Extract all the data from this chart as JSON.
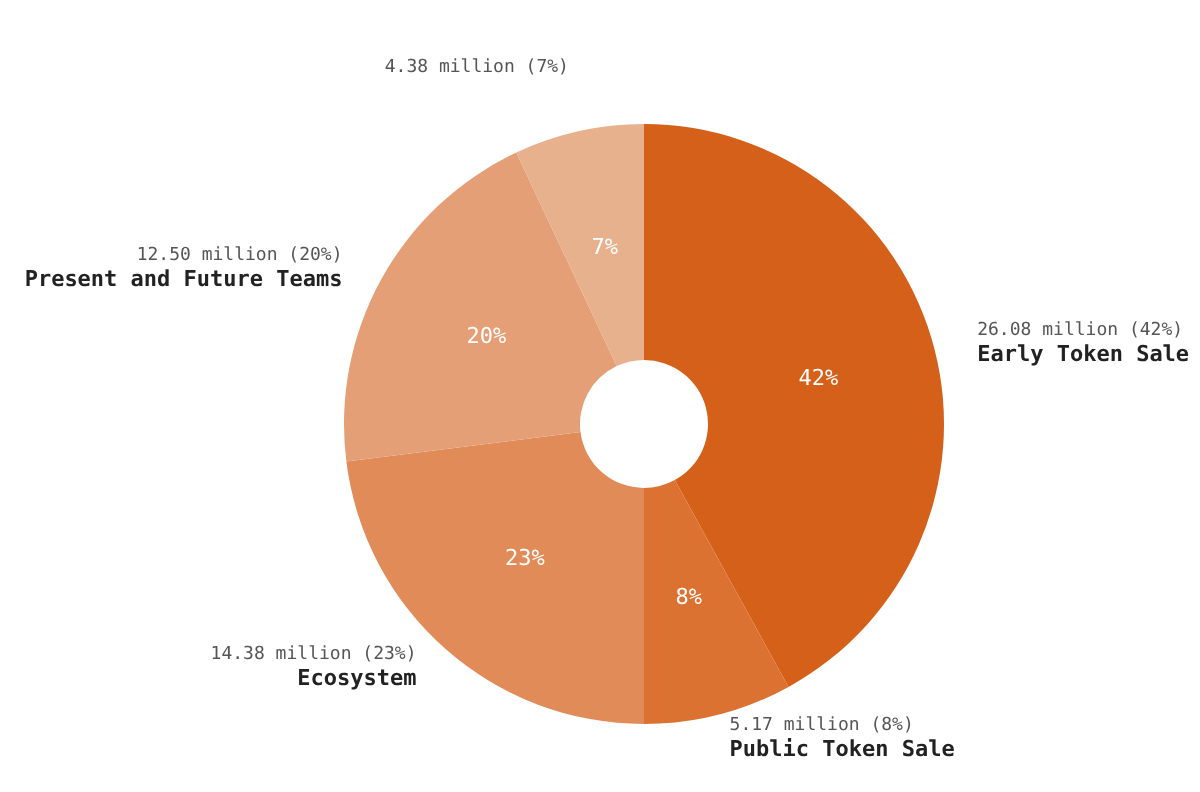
{
  "chart_data": {
    "type": "donut",
    "categories": [
      "Early Token Sale",
      "Public Token Sale",
      "Ecosystem",
      "Present and Future Teams",
      null
    ],
    "values": [
      42,
      8,
      23,
      20,
      7
    ],
    "colors": [
      "#d4601a",
      "#dc7232",
      "#e08b58",
      "#e49f77",
      "#e8b18e"
    ],
    "value_labels": [
      "42%",
      "8%",
      "23%",
      "20%",
      "7%"
    ],
    "annotations": [
      "26.08 million (42%)",
      "5.17 million (8%)",
      "14.38 million (23%)",
      "12.50 million (20%)",
      "4.38 million (7%)"
    ]
  }
}
